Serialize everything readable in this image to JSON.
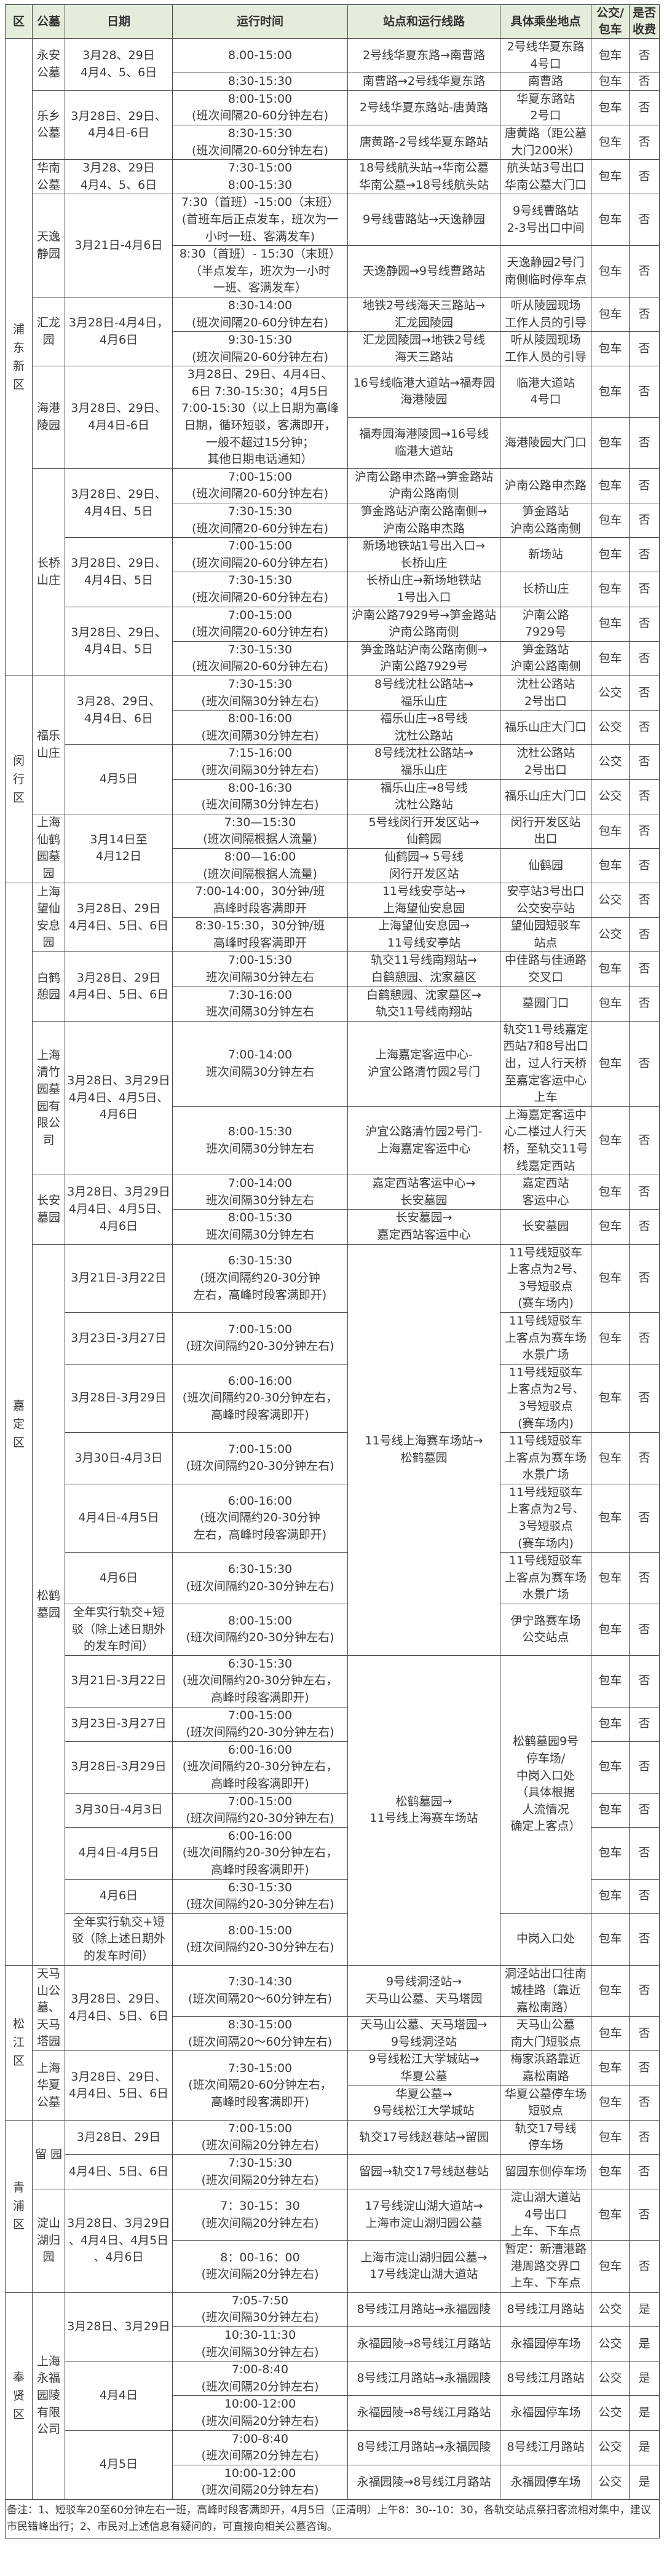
{
  "header": [
    "区",
    "公墓",
    "日期",
    "运行时间",
    "站点和运行线路",
    "具体乘坐地点",
    "公交/\n包车",
    "是否\n收费"
  ],
  "table": {
    "rows": [
      [
        "浦东新区",
        "永安公墓",
        "3月28、29日\n4月4、5、6日",
        "8.00-15:00",
        "2号线华夏东路→南曹路",
        "2号线华夏东路\n4号口",
        "包车",
        "否"
      ],
      [
        null,
        null,
        null,
        "8:30-15:30",
        "南曹路→2号线华夏东路",
        "南曹路",
        "包车",
        "否"
      ],
      [
        null,
        "乐乡公墓",
        "3月28日、29日、\n4月4日-6日",
        "8:00-15:00\n(班次间隔20-60分钟左右)",
        "2号线华夏东路站-唐黄路",
        "华夏东路站\n2号口",
        "包车",
        "否"
      ],
      [
        null,
        null,
        null,
        "8:30-15:30\n(班次间隔20-60分钟左右)",
        "唐黄路-2号线华夏东路站",
        "唐黄路（距公墓\n大门200米）",
        "包车",
        "否"
      ],
      [
        null,
        "华南公墓",
        "3月28、29日\n4月4、5、6日",
        "7:30-15:00\n8:00-15:30",
        "18号线航头站→华南公墓\n华南公墓→18号线航头站",
        "航头站3号出口\n华南公墓大门口",
        "包车",
        "否"
      ],
      [
        null,
        "天逸静园",
        "3月21日-4月6日",
        "7:30（首班）-15:00（末班）\n(首班车后正点发车，班次为一\n小时一班、客满发车)",
        "9号线曹路站→天逸静园",
        "9号线曹路站\n2-3号出口中间",
        "包车",
        "否"
      ],
      [
        null,
        null,
        null,
        "8:30（首班）- 15:30（末班）\n（半点发车，班次为一小时\n一班、客满发车）",
        "天逸静园→9号线曹路站",
        "天逸静园2号门\n南侧临时停车点",
        "包车",
        "否"
      ],
      [
        null,
        "汇龙园",
        "3月28日-4月4日，\n4月6日",
        "8:30-14:00\n(班次间隔20-60分钟左右)",
        "地铁2号线海天三路站→\n汇龙园陵园",
        "听从陵园现场\n工作人员的引导",
        "包车",
        "否"
      ],
      [
        null,
        null,
        null,
        "9:30-15:30\n(班次间隔20-60分钟左右)",
        "汇龙园陵园→地铁2号线\n海天三路站",
        "听从陵园现场\n工作人员的引导",
        "包车",
        "否"
      ],
      [
        null,
        "海港陵园",
        "3月28日、29日、\n4月4日-6日",
        "3月28日、29日、4月4日、\n6日 7:30-15:30；4月5日\n7:00-15:30（以上日期为高峰\n日期，循环短驳，客满即开，\n一般不超过15分钟；\n其他日期电话通知）",
        "16号线临港大道站→福寿园\n海港陵园",
        "临港大道站\n4号口",
        "包车",
        "否"
      ],
      [
        null,
        null,
        null,
        null,
        "福寿园海港陵园→16号线\n临港大道站",
        "海港陵园大门口",
        "包车",
        "否"
      ],
      [
        null,
        "长桥山庄",
        "3月28日、29日、\n4月4日、5日",
        "7:00-15:00\n(班次间隔20-60分钟左右)",
        "沪南公路申杰路→笋金路站\n沪南公路南侧",
        "沪南公路申杰路",
        "包车",
        "否"
      ],
      [
        null,
        null,
        null,
        "7:30-15:30\n(班次间隔20-60分钟左右)",
        "笋金路站沪南公路南侧→\n沪南公路申杰路",
        "笋金路站\n沪南公路南侧",
        "包车",
        "否"
      ],
      [
        null,
        null,
        "3月28日、29日、\n4月4日、5日",
        "7:00-15:00\n(班次间隔20-60分钟左右)",
        "新场地铁站1号出入口→\n长桥山庄",
        "新场站",
        "包车",
        "否"
      ],
      [
        null,
        null,
        null,
        "7:30-15:30\n(班次间隔20-60分钟左右)",
        "长桥山庄→新场地铁站\n1号出入口",
        "长桥山庄",
        "包车",
        "否"
      ],
      [
        null,
        null,
        "3月28日、29日、\n4月4日、5日",
        "7:00-15:00\n(班次间隔20-60分钟左右)",
        "沪南公路7929号→笋金路站\n沪南公路南侧",
        "沪南公路\n7929号",
        "包车",
        "否"
      ],
      [
        null,
        null,
        null,
        "7:30-15:30\n(班次间隔20-60分钟左右)",
        "笋金路站沪南公路南侧→\n沪南公路7929号",
        "笋金路站\n沪南公路南侧",
        "包车",
        "否"
      ],
      [
        "闵行区",
        "福乐山庄",
        "3月28、29日、\n4月4日、6日",
        "7:30-15:30\n(班次间隔30分钟左右)",
        "8号线沈杜公路站→\n福乐山庄",
        "沈杜公路站\n2号出口",
        "公交",
        "否"
      ],
      [
        null,
        null,
        null,
        "8:00-16:00\n(班次间隔30分钟左右)",
        "福乐山庄→8号线\n沈杜公路站",
        "福乐山庄大门口",
        "公交",
        "否"
      ],
      [
        null,
        null,
        "4月5日",
        "7:15-16:00\n(班次间隔30分钟左右)",
        "8号线沈杜公路站→\n福乐山庄",
        "沈杜公路站\n2号出口",
        "公交",
        "否"
      ],
      [
        null,
        null,
        null,
        "8:00-16:30\n(班次间隔30分钟左右)",
        "福乐山庄→8号线\n沈杜公路站",
        "福乐山庄大门口",
        "公交",
        "否"
      ],
      [
        null,
        "上海仙鹤园墓园",
        "3月14日至\n4月12日",
        "7:30—15:30\n(班次间隔根据人流量)",
        "5号线闵行开发区站→\n仙鹤园",
        "闵行开发区站\n出口",
        "包车",
        "否"
      ],
      [
        null,
        null,
        null,
        "8:00—16:00\n(班次间隔根据人流量)",
        "仙鹤园→ 5号线\n闵行开发区站",
        "仙鹤园",
        "包车",
        "否"
      ],
      [
        "嘉定区",
        "上海望仙安息园",
        "3月28日、29日\n4月4日、5日、6日",
        "7:00-14:00，30分钟/班\n高峰时段客满即开",
        "11号线安亭站→\n上海望仙安息园",
        "安亭站3号出口\n公交安亭站",
        "公交",
        "否"
      ],
      [
        null,
        null,
        null,
        "8:30-15:30，30分钟/班\n高峰时段客满即开",
        "上海望仙安息园→\n11号线安亭站",
        "望仙园短驳车\n站点",
        "公交",
        "否"
      ],
      [
        null,
        "白鹤憩园",
        "3月28日、29日\n4月4日、5日、6日",
        "7:00-15:30\n班次间隔30分钟左右",
        "轨交11号线南翔站→\n白鹤憩园、沈家墓区",
        "中佳路与佳通路\n交叉口",
        "包车",
        "否"
      ],
      [
        null,
        null,
        null,
        "7:30-16:00\n班次间隔30分钟左右",
        "白鹤憩园、沈家墓区→\n轨交11号线南翔站",
        "墓园门口",
        "包车",
        "否"
      ],
      [
        null,
        "上海清竹园墓园有限公司",
        "3月28日、3月29日\n4月4日、4月5日、\n4月6日",
        "7:00-14:00\n班次间隔30分钟左右",
        "上海嘉定客运中心-\n沪宜公路清竹园2号门",
        "轨交11号线嘉定\n西站7和8号出口\n出，过人行天桥\n至嘉定客运中心\n上车",
        "包车",
        "否"
      ],
      [
        null,
        null,
        null,
        "8:00-15:30\n班次间隔30分钟左右",
        "沪宜公路清竹园2号门-\n上海嘉定客运中心",
        "上海嘉定客运中\n心二楼过人行天\n桥，至轨交11号\n线嘉定西站",
        "包车",
        "否"
      ],
      [
        null,
        "长安墓园",
        "3月28日、3月29日\n4月4日、4月5日、\n4月6日",
        "7:00-14:00\n班次间隔30分钟左右",
        "嘉定西站客运中心→\n长安墓园",
        "嘉定西站\n客运中心",
        "包车",
        "否"
      ],
      [
        null,
        null,
        null,
        "8:00-15:30\n班次间隔30分钟左右",
        "长安墓园→\n嘉定西站客运中心",
        "长安墓园",
        "包车",
        "否"
      ],
      [
        null,
        "松鹤墓园",
        "3月21日-3月22日",
        "6:30-15:30\n(班次间隔约20-30分钟\n左右，高峰时段客满即开)",
        "11号线上海赛车场站→\n松鹤墓园",
        "11号线短驳车\n上客点为2号、\n3号短驳点\n(赛车场内)",
        "包车",
        "否"
      ],
      [
        null,
        null,
        "3月23日-3月27日",
        "7:00-15:00\n(班次间隔约20-30分钟左右)",
        null,
        "11号线短驳车\n上客点为赛车场\n水景广场",
        "包车",
        "否"
      ],
      [
        null,
        null,
        "3月28日-3月29日",
        "6:00-16:00\n(班次间隔约20-30分钟左右，\n高峰时段客满即开)",
        null,
        "11号线短驳车\n上客点为2号、\n3号短驳点\n(赛车场内)",
        "包车",
        "否"
      ],
      [
        null,
        null,
        "3月30日-4月3日",
        "7:00-15:00\n(班次间隔约20-30分钟左右)",
        null,
        "11号线短驳车\n上客点为赛车场\n水景广场",
        "包车",
        "否"
      ],
      [
        null,
        null,
        "4月4日-4月5日",
        "6:00-16:00\n(班次间隔约20-30分钟\n左右，高峰时段客满即开)",
        null,
        "11号线短驳车\n上客点为2号、\n3号短驳点\n(赛车场内)",
        "包车",
        "否"
      ],
      [
        null,
        null,
        "4月6日",
        "6:30-15:30\n(班次间隔约20-30分钟左右)",
        null,
        "11号线短驳车\n上客点为赛车场\n水景广场",
        "包车",
        "否"
      ],
      [
        null,
        null,
        "全年实行轨交+短\n驳（除上述日期外\n的发车时间）",
        "8:00-15:00\n(班次间隔约20-30分钟左右)",
        null,
        "伊宁路赛车场\n公交站点",
        "包车",
        "否"
      ],
      [
        null,
        null,
        "3月21日-3月22日",
        "6:30-15:30\n(班次间隔约20-30分钟左右，\n高峰时段客满即开)",
        "松鹤墓园→\n11号线上海赛车场站",
        "松鹤墓园9号\n停车场/\n中岗入口处\n（具体根据\n人流情况\n确定上客点）",
        "包车",
        "否"
      ],
      [
        null,
        null,
        "3月23日-3月27日",
        "7:00-15:00\n(班次间隔约20-30分钟左右)",
        null,
        null,
        "包车",
        "否"
      ],
      [
        null,
        null,
        "3月28日-3月29日",
        "6:00-16:00\n(班次间隔约20-30分钟左右，\n高峰时段客满即开)",
        null,
        null,
        "包车",
        "否"
      ],
      [
        null,
        null,
        "3月30日-4月3日",
        "7:00-15:00\n(班次间隔约20-30分钟左右)",
        null,
        null,
        "包车",
        "否"
      ],
      [
        null,
        null,
        "4月4日-4月5日",
        "6:00-16:00\n(班次间隔约20-30分钟左右，\n高峰时段客满即开)",
        null,
        null,
        "包车",
        "否"
      ],
      [
        null,
        null,
        "4月6日",
        "6:30-15:30\n(班次间隔约20-30分钟左右)",
        null,
        null,
        "包车",
        "否"
      ],
      [
        null,
        null,
        "全年实行轨交+短\n驳（除上述日期外\n的发车时间）",
        "8:00-15:00\n(班次间隔约20-30分钟左右)",
        null,
        "中岗入口处",
        "包车",
        "否"
      ],
      [
        "松江区",
        "天马山公墓、天马塔园",
        "3月28日、29日、\n4月4日、5日、6日",
        "7:30-14:30\n(班次间隔20～60分钟左右)",
        "9号线洞泾站→\n天马山公墓、天马塔园",
        "洞泾站出口往南\n城桂路（靠近\n嘉松南路）",
        "包车",
        "否"
      ],
      [
        null,
        null,
        null,
        "8:30-15:00\n(班次间隔20～60分钟左右)",
        "天马山公墓、天马塔园→\n9号线洞泾站",
        "天马山公墓\n南大门短驳点",
        "包车",
        "否"
      ],
      [
        null,
        "上海华夏公墓",
        "3月28日、29日、\n4月4日、5日、6日",
        "7:30-15:00\n(班次间隔20-60分钟左右，\n高峰时段客满即开)",
        "9号线松江大学城站→\n华夏公墓",
        "梅家浜路靠近\n嘉松南路",
        "包车",
        "否"
      ],
      [
        null,
        null,
        null,
        null,
        "华夏公墓→\n9号线松江大学城站",
        "华夏公墓停车场\n短驳点",
        "包车",
        "否"
      ],
      [
        "青浦区",
        "留 园",
        "3月28日、29日",
        "7:00-15:00\n(班次间隔20分钟左右)",
        "轨交17号线赵巷站→留园",
        "轨交17号线\n停车场",
        "包车",
        "否"
      ],
      [
        null,
        null,
        "4月4日、5日、6日",
        "7:30-15:30\n(班次间隔20分钟左右)",
        "留园→轨交17号线赵巷站",
        "留园东侧停车场",
        "包车",
        "否"
      ],
      [
        null,
        "淀山湖归园",
        "3月28日、3月29日\n、4月4日、4月5日\n、4月6日",
        "7：30-15：30\n(班次间隔20分钟左右)",
        "17号线淀山湖大道站→\n上海市淀山湖归园公墓",
        "淀山湖大道站\n4号出口\n上车、下车点",
        "包车",
        "否"
      ],
      [
        null,
        null,
        null,
        "8：00-16：00\n(班次间隔20分钟左右)",
        "上海市淀山湖归园公墓→\n17号线淀山湖大道站",
        "暂定：新漕港路\n港周路交界口\n上车、下车点",
        "包车",
        "否"
      ],
      [
        "奉贤区",
        "上海永福园陵有限公司",
        "3月28日、3月29日",
        "7:05-7:50\n(班次间隔30分钟左右)",
        "8号线江月路站→永福园陵",
        "8号线江月路站",
        "公交",
        "是"
      ],
      [
        null,
        null,
        null,
        "10:30-11:30\n(班次间隔30分钟左右)",
        "永福园陵→8号线江月路站",
        "永福园停车场",
        "公交",
        "是"
      ],
      [
        null,
        null,
        "4月4日",
        "7:00-8:40\n(班次间隔20分钟左右)",
        "8号线江月路站→永福园陵",
        "8号线江月路站",
        "公交",
        "是"
      ],
      [
        null,
        null,
        null,
        "10:00-12:00\n(班次间隔20分钟左右)",
        "永福园陵→8号线江月路站",
        "永福园停车场",
        "公交",
        "是"
      ],
      [
        null,
        null,
        "4月5日",
        "7:00-8:40\n(班次间隔20分钟左右)",
        "8号线江月路站→永福园陵",
        "8号线江月路站",
        "公交",
        "是"
      ],
      [
        null,
        null,
        null,
        "10:00-12:00\n(班次间隔20分钟左右)",
        "永福园陵→8号线江月路站",
        "永福园停车场",
        "公交",
        "是"
      ]
    ]
  },
  "note": "备注：1、短驳车20至60分钟左右一班，高峰时段客满即开，4月5日（正清明）上午8：30--10：30，各轨交站点祭扫客流相对集中，建议市民错峰出行；2、市民对上述信息有疑问的，可直接向相关公墓咨询。",
  "colors": {
    "header_bg": "#e4eddc",
    "text": "#3a3a3a",
    "border": "#4a4a4a"
  }
}
